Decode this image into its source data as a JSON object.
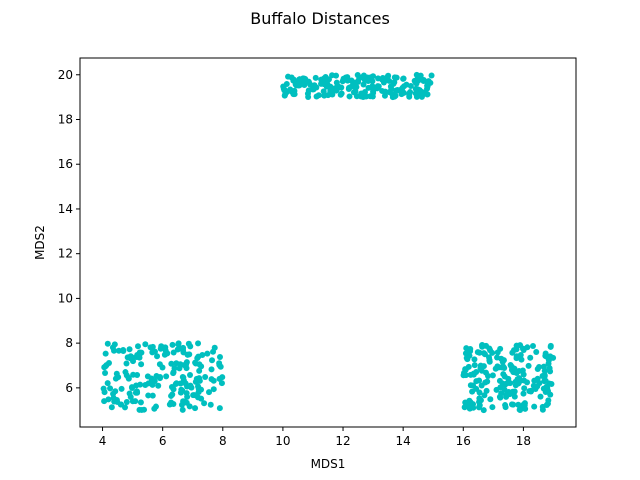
{
  "chart_data": {
    "type": "scatter",
    "title": "Buffalo Distances",
    "xlabel": "MDS1",
    "ylabel": "MDS2",
    "xlim": [
      3.25,
      19.75
    ],
    "ylim": [
      4.25,
      20.75
    ],
    "xticks": [
      4,
      6,
      8,
      10,
      12,
      14,
      16,
      18
    ],
    "yticks": [
      6,
      8,
      10,
      12,
      14,
      16,
      18,
      20
    ],
    "xtick_labels": [
      "4",
      "6",
      "8",
      "10",
      "12",
      "14",
      "16",
      "18"
    ],
    "ytick_labels": [
      "6",
      "8",
      "10",
      "12",
      "14",
      "16",
      "18",
      "20"
    ],
    "grid": false,
    "marker_color": "#00bfbf",
    "series": [
      {
        "clusters": [
          {
            "x_range": [
              4,
              8
            ],
            "y_range": [
              5,
              8
            ],
            "count": 200
          },
          {
            "x_range": [
              10,
              15
            ],
            "y_range": [
              19,
              20
            ],
            "count": 200
          },
          {
            "x_range": [
              16,
              19
            ],
            "y_range": [
              5,
              8
            ],
            "count": 200
          }
        ]
      }
    ]
  }
}
